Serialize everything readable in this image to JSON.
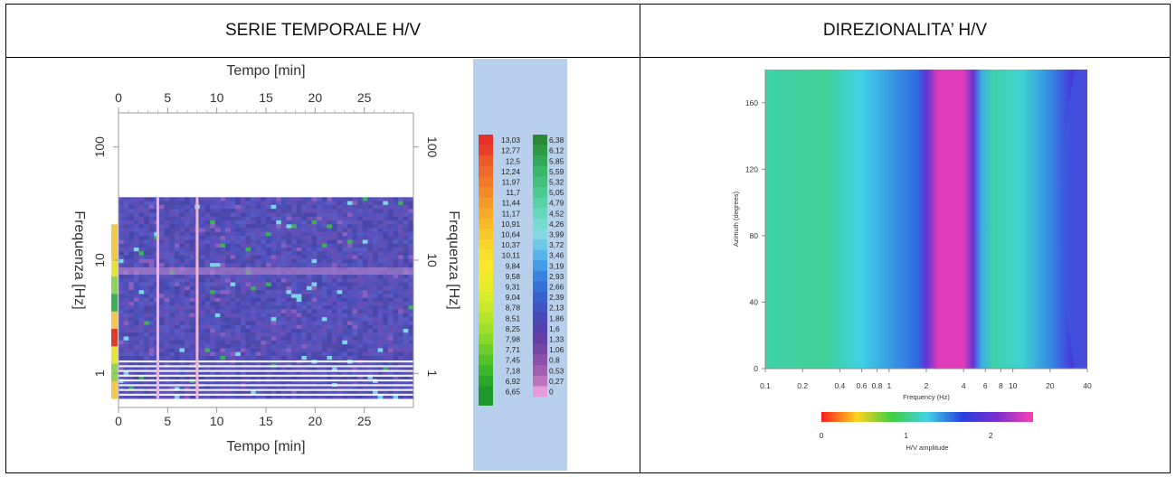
{
  "headers": {
    "left": "SERIE TEMPORALE H/V",
    "right": "DIREZIONALITA’ H/V"
  },
  "colors": {
    "cell_bg": "#ffffff",
    "legend_bg": "#b9d0ec",
    "spectrogram_bg": "#4f4fb8",
    "border": "#000000"
  },
  "chart_data": [
    {
      "type": "heatmap",
      "title": "",
      "xlabel": "Tempo [min]",
      "ylabel": "Frequenza [Hz]",
      "xlim": [
        0,
        30
      ],
      "ylim": [
        0.5,
        200
      ],
      "y_scale": "log",
      "x_ticks": [
        0,
        5,
        10,
        15,
        20,
        25
      ],
      "y_ticks": [
        1,
        10,
        100
      ],
      "y_tick_labels": [
        "1",
        "10",
        "100"
      ],
      "data_frequency_range_hz": [
        0.6,
        36
      ],
      "bright_time_lines_min": [
        4,
        8
      ],
      "dominant_band_hz": 8,
      "legend": {
        "position": "right",
        "scale_left": [
          "13,03",
          "12,77",
          "12,5",
          "12,24",
          "11,97",
          "11,7",
          "11,44",
          "11,17",
          "10,91",
          "10,64",
          "10,37",
          "10,11",
          "9,84",
          "9,58",
          "9,31",
          "9,04",
          "8,78",
          "8,51",
          "8,25",
          "7,98",
          "7,71",
          "7,45",
          "7,18",
          "6,92",
          "6,65"
        ],
        "scale_right": [
          "6,38",
          "6,12",
          "5,85",
          "5,59",
          "5,32",
          "5,05",
          "4,79",
          "4,52",
          "4,26",
          "3,99",
          "3,72",
          "3,46",
          "3,19",
          "2,93",
          "2,66",
          "2,39",
          "2,13",
          "1,86",
          "1,6",
          "1,33",
          "1,06",
          "0,8",
          "0,53",
          "0,27",
          "0"
        ]
      }
    },
    {
      "type": "heatmap",
      "title": "",
      "xlabel": "Frequency (Hz)",
      "ylabel": "Azimuth (degrees)",
      "x_scale": "log",
      "xlim": [
        0.1,
        40
      ],
      "ylim": [
        0,
        180
      ],
      "x_ticks": [
        0.1,
        0.2,
        0.4,
        0.6,
        0.8,
        1,
        2,
        4,
        6,
        8,
        10,
        20,
        40
      ],
      "x_tick_labels": [
        "0.1",
        "0.2",
        "0.4",
        "0.6",
        "0.8",
        "1",
        "2",
        "4",
        "6",
        "8",
        "10",
        "20",
        "40"
      ],
      "y_ticks": [
        0,
        40,
        80,
        120,
        160
      ],
      "peak_frequency_hz": 3,
      "colorbar": {
        "label": "H/V amplitude",
        "ticks": [
          0,
          1,
          2
        ],
        "range": [
          0,
          2.5
        ],
        "colors": [
          "#ff1d1d",
          "#ffd21d",
          "#3fcf3f",
          "#3fd2e6",
          "#2a3fe0",
          "#7a2fd0",
          "#ff3fb0"
        ]
      },
      "columns_hz": [
        {
          "f": 0.1,
          "amp": 1.1
        },
        {
          "f": 0.3,
          "amp": 1.05
        },
        {
          "f": 0.6,
          "amp": 1.25
        },
        {
          "f": 1.2,
          "amp": 1.45
        },
        {
          "f": 1.7,
          "amp": 1.55
        },
        {
          "f": 2.0,
          "amp": 1.95
        },
        {
          "f": 2.5,
          "amp": 2.4
        },
        {
          "f": 4.0,
          "amp": 2.4
        },
        {
          "f": 4.8,
          "amp": 1.95
        },
        {
          "f": 5.6,
          "amp": 1.35
        },
        {
          "f": 7.0,
          "amp": 1.1
        },
        {
          "f": 12.0,
          "amp": 1.2
        },
        {
          "f": 20.0,
          "amp": 1.45
        },
        {
          "f": 30.0,
          "amp": 1.8
        },
        {
          "f": 40.0,
          "amp": 1.95
        }
      ]
    }
  ]
}
